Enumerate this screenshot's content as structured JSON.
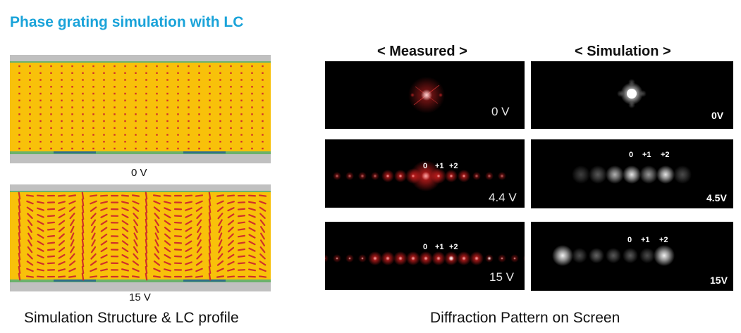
{
  "title": "Phase grating simulation with LC",
  "left": {
    "voltage_top": "0 V",
    "voltage_bottom": "15 V",
    "caption": "Simulation Structure & LC profile"
  },
  "right": {
    "measured_header": "< Measured >",
    "simulation_header": "< Simulation >",
    "caption": "Diffraction Pattern on Screen",
    "order_labels": [
      "0",
      "+1",
      "+2"
    ],
    "measured_voltages": [
      "0 V",
      "4.4 V",
      "15 V"
    ],
    "simulation_voltages": [
      "0V",
      "4.5V",
      "15V"
    ]
  },
  "colors": {
    "title": "#1aa3d9",
    "lc_layer": "#f8c10a",
    "lc_molecule": "#d0302a",
    "substrate": "#c0c0c0",
    "electrode": "#2e6e8a",
    "alignment_layer": "#6bb26b"
  }
}
